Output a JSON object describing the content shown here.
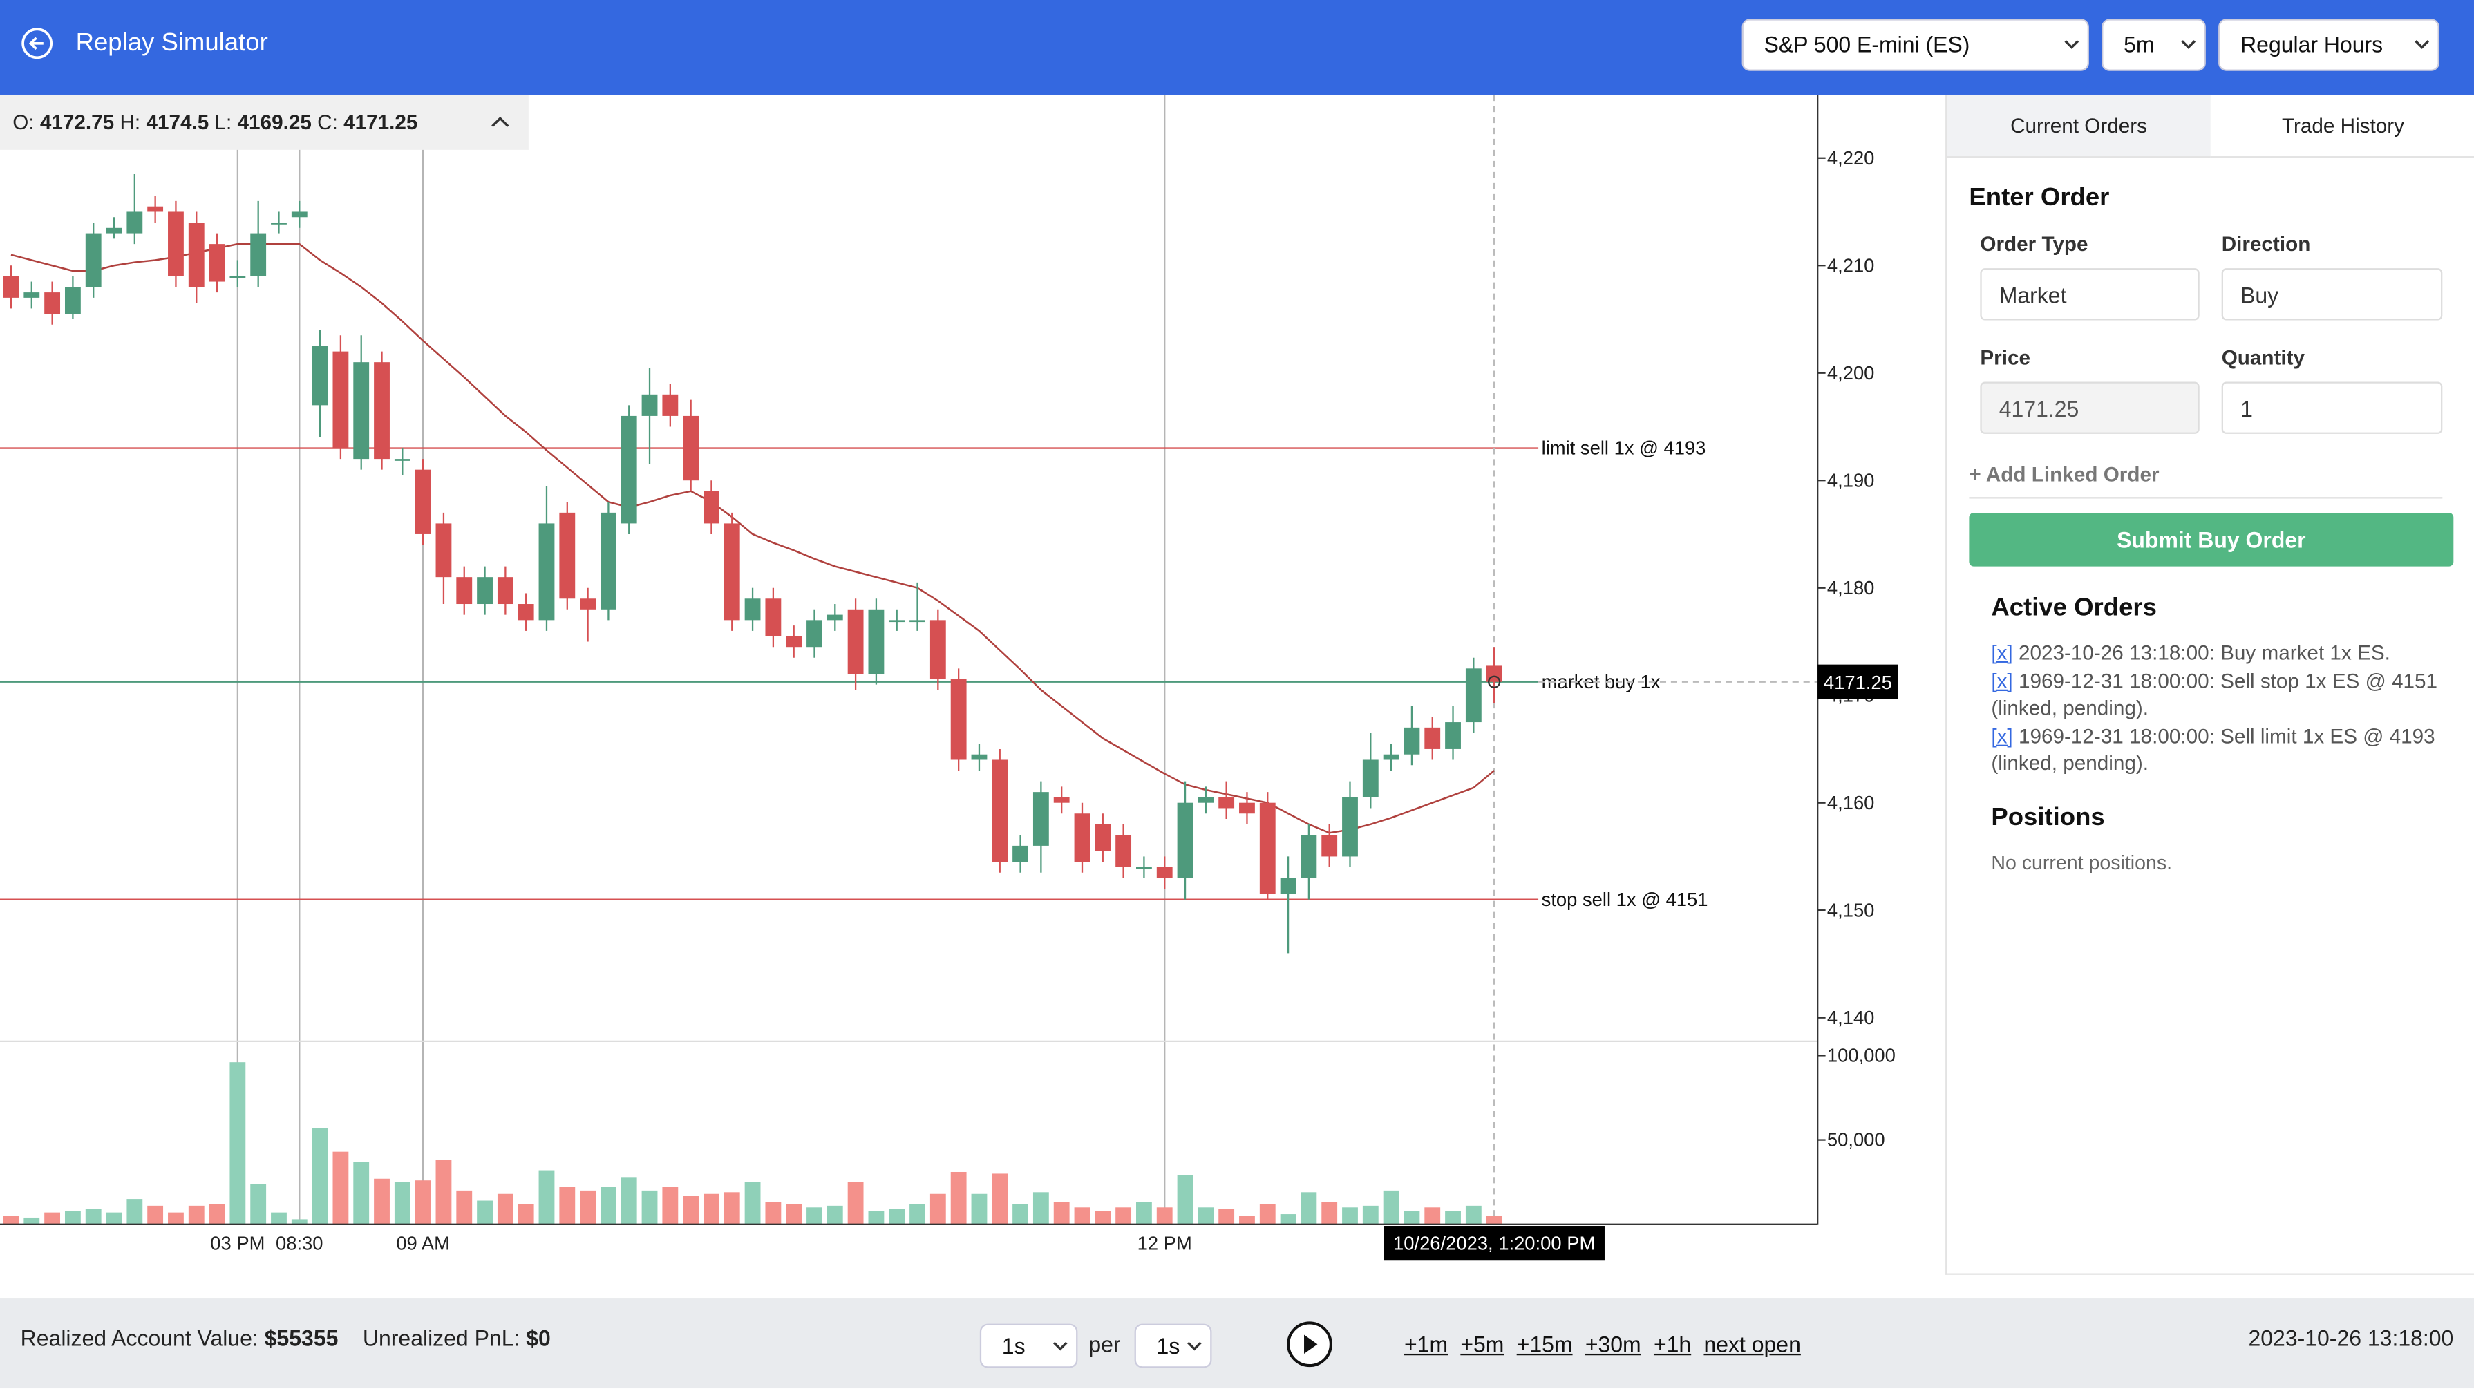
{
  "header": {
    "title": "Replay Simulator",
    "selects": [
      "S&P 500 E-mini (ES)",
      "5m",
      "Regular Hours"
    ]
  },
  "chart_data": {
    "type": "candlestick",
    "ohlc_labels": [
      "O:",
      "H:",
      "L:",
      "C:"
    ],
    "open": [
      4209,
      4207,
      4207.5,
      4205.5,
      4208,
      4213,
      4213,
      4215.5,
      4215,
      4214,
      4212,
      4209,
      4209,
      4214,
      4214.5,
      4197,
      4202,
      4192,
      4201,
      4192,
      4191,
      4186,
      4181,
      4178.5,
      4181,
      4178.5,
      4177,
      4187,
      4179,
      4178,
      4186,
      4196,
      4198,
      4196,
      4189,
      4186,
      4177,
      4179,
      4175.5,
      4174.5,
      4177,
      4178,
      4172,
      4177,
      4177,
      4177,
      4171.5,
      4164,
      4164,
      4154.5,
      4156,
      4160.5,
      4159,
      4158,
      4157,
      4154,
      4154,
      4153,
      4160,
      4160.5,
      4160,
      4160,
      4151.5,
      4153,
      4157,
      4155,
      4160.5,
      4164,
      4164.5,
      4167,
      4165,
      4167.5,
      4172.75
    ],
    "close": [
      4207,
      4207.5,
      4205.5,
      4208,
      4213,
      4213.5,
      4215,
      4215,
      4209,
      4208,
      4208.5,
      4209,
      4213,
      4214,
      4215,
      4202.5,
      4193,
      4201,
      4192,
      4192,
      4185,
      4181,
      4178.5,
      4181,
      4178.5,
      4177,
      4186,
      4179,
      4178,
      4187,
      4196,
      4198,
      4196,
      4190,
      4186,
      4177,
      4179,
      4175.5,
      4174.5,
      4177,
      4177.5,
      4172,
      4178,
      4177,
      4177,
      4171.5,
      4164,
      4164.5,
      4154.5,
      4156,
      4161,
      4160,
      4154.5,
      4155.5,
      4154,
      4154,
      4153,
      4160,
      4160.5,
      4159.5,
      4159,
      4151.5,
      4153,
      4157,
      4155,
      4160.5,
      4164,
      4164.5,
      4167,
      4165,
      4167.5,
      4172.5,
      4171.25
    ],
    "high": [
      4210,
      4208.5,
      4208.5,
      4209,
      4214,
      4214.5,
      4218.5,
      4216.5,
      4216,
      4215,
      4213,
      4210.5,
      4216,
      4215,
      4216,
      4204,
      4203.5,
      4203.5,
      4202,
      4193,
      4192,
      4187,
      4182,
      4182,
      4182,
      4179.5,
      4189.5,
      4188,
      4180,
      4188,
      4197,
      4200.5,
      4199,
      4197.5,
      4190,
      4187,
      4180,
      4180,
      4176.5,
      4178,
      4178.5,
      4179,
      4179,
      4178,
      4180.5,
      4178,
      4172.5,
      4165.5,
      4165,
      4157,
      4162,
      4161.5,
      4160,
      4159,
      4158,
      4155,
      4155,
      4162,
      4161.5,
      4162,
      4161,
      4161,
      4155,
      4158,
      4158,
      4162,
      4166.5,
      4165.5,
      4169,
      4168,
      4169,
      4173.5,
      4174.5
    ],
    "low": [
      4206,
      4206,
      4204.5,
      4205,
      4207,
      4212.5,
      4212,
      4214,
      4208,
      4206.5,
      4207.5,
      4208,
      4208,
      4213,
      4213.5,
      4194,
      4192,
      4191,
      4191,
      4190.5,
      4184,
      4178.5,
      4177.5,
      4177.5,
      4177.5,
      4176,
      4176,
      4178,
      4175,
      4177,
      4185,
      4191.5,
      4195,
      4189,
      4185,
      4176,
      4176,
      4174.5,
      4173.5,
      4173.5,
      4176,
      4170.5,
      4171,
      4176,
      4176,
      4170.5,
      4163,
      4163,
      4153.5,
      4153.5,
      4153.5,
      4159,
      4153.5,
      4154.5,
      4153,
      4153,
      4152,
      4151,
      4159,
      4158.5,
      4158,
      4151,
      4146,
      4151,
      4154,
      4154,
      4159.5,
      4163,
      4163.5,
      4164,
      4164,
      4166.5,
      4169.25
    ],
    "volume": [
      5000,
      4000,
      7000,
      8000,
      9000,
      7000,
      15000,
      11000,
      7000,
      11000,
      12000,
      96000,
      24000,
      7000,
      3000,
      57000,
      43000,
      37000,
      27000,
      25000,
      26000,
      38000,
      20000,
      14000,
      18000,
      12000,
      32000,
      22000,
      20000,
      22000,
      28000,
      20000,
      22000,
      17000,
      18000,
      19000,
      25000,
      13000,
      12000,
      10000,
      11000,
      25000,
      8000,
      9000,
      12000,
      18000,
      31000,
      18000,
      30000,
      12000,
      19000,
      13000,
      10000,
      8000,
      10000,
      13000,
      10000,
      29000,
      10000,
      9000,
      5000,
      12000,
      6000,
      19000,
      13000,
      10000,
      11000,
      20000,
      8000,
      10000,
      8000,
      11000,
      5000
    ],
    "ma": {
      "color": "#b0413e",
      "values": [
        4211,
        4210.5,
        4210,
        4209.5,
        4209.5,
        4210,
        4210.3,
        4210.5,
        4210.8,
        4211.2,
        4211.6,
        4212,
        4212,
        4212,
        4212,
        4210.5,
        4209.3,
        4208,
        4206.5,
        4204.8,
        4203,
        4201.3,
        4199.6,
        4197.8,
        4196,
        4194.5,
        4192.8,
        4191.2,
        4189.6,
        4188,
        4187.5,
        4188,
        4188.6,
        4189,
        4188,
        4186.6,
        4185,
        4184.2,
        4183.5,
        4182.7,
        4182,
        4181.5,
        4181,
        4180.5,
        4180,
        4178.8,
        4177.4,
        4176,
        4174.2,
        4172.4,
        4170.5,
        4169,
        4167.5,
        4166,
        4164.9,
        4163.8,
        4162.7,
        4161.7,
        4161.2,
        4160.8,
        4160.4,
        4160,
        4159,
        4158,
        4157.2,
        4157.5,
        4158,
        4158.6,
        4159.3,
        4160,
        4160.7,
        4161.4,
        4163
      ]
    },
    "colors": {
      "up": "#4e9a7c",
      "down": "#d65052",
      "up_volume": "#8fd0b8",
      "down_volume": "#f4918b"
    },
    "categories": [
      null,
      null,
      null,
      null,
      null,
      null,
      null,
      null,
      null,
      null,
      null,
      "03 PM",
      null,
      null,
      "08:30",
      null,
      null,
      null,
      null,
      null,
      "09 AM",
      null,
      null,
      null,
      null,
      null,
      null,
      null,
      null,
      null,
      null,
      null,
      null,
      null,
      null,
      null,
      null,
      null,
      null,
      null,
      null,
      null,
      null,
      null,
      null,
      null,
      null,
      null,
      null,
      null,
      null,
      null,
      null,
      null,
      null,
      null,
      "12 PM",
      null,
      null,
      null,
      null,
      null,
      null,
      null,
      null,
      null,
      null,
      null,
      null,
      null,
      null,
      null,
      null
    ],
    "crosshair": {
      "label": "10/26/2023, 1:20:00 PM"
    },
    "order_lines": [
      {
        "label": "limit sell 1x @ 4193",
        "price": 4193,
        "color": "#d65052"
      },
      {
        "label": "market buy 1x",
        "price": 4171.25,
        "color": "#4e9a7c"
      },
      {
        "label": "stop sell 1x @ 4151",
        "price": 4151,
        "color": "#d65052"
      }
    ],
    "ylim": [
      4137.8,
      4225.9
    ],
    "yticks": [
      {
        "value": 4140,
        "label": "4,140"
      },
      {
        "value": 4150,
        "label": "4,150"
      },
      {
        "value": 4160,
        "label": "4,160"
      },
      {
        "value": 4170,
        "label": "4,170"
      },
      {
        "value": 4180,
        "label": "4,180"
      },
      {
        "value": 4190,
        "label": "4,190"
      },
      {
        "value": 4200,
        "label": "4,200"
      },
      {
        "value": 4210,
        "label": "4,210"
      },
      {
        "value": 4220,
        "label": "4,220"
      }
    ],
    "y2lim": [
      0,
      108400
    ],
    "y2ticks": [
      {
        "value": 50000,
        "label": "50,000"
      },
      {
        "value": 100000,
        "label": "100,000"
      }
    ]
  },
  "panel": {
    "tabs": [
      "Current Orders",
      "Trade History"
    ],
    "heading": "Enter Order",
    "form": {
      "order_type_label": "Order Type",
      "order_type": "Market",
      "direction_label": "Direction",
      "direction": "Buy",
      "price_label": "Price",
      "price": "4171.25",
      "quantity_label": "Quantity",
      "quantity": "1"
    },
    "add_linked": "+ Add Linked Order",
    "submit": "Submit Buy Order",
    "active_heading": "Active Orders",
    "cancel": "[x]",
    "active_orders": [
      "2023-10-26 13:18:00: Buy market 1x ES.",
      "1969-12-31 18:00:00: Sell stop 1x ES @ 4151 (linked, pending).",
      "1969-12-31 18:00:00: Sell limit 1x ES @ 4193 (linked, pending)."
    ],
    "positions_heading": "Positions",
    "positions_empty": "No current positions."
  },
  "footer": {
    "realized_label": "Realized Account Value:",
    "realized": "$55355",
    "unrealized_label": "Unrealized PnL:",
    "unrealized": "$0",
    "speed": "1s",
    "per": "per",
    "interval": "1s",
    "skips": [
      "+1m",
      "+5m",
      "+15m",
      "+30m",
      "+1h",
      "next open"
    ],
    "clock": "2023-10-26 13:18:00"
  }
}
